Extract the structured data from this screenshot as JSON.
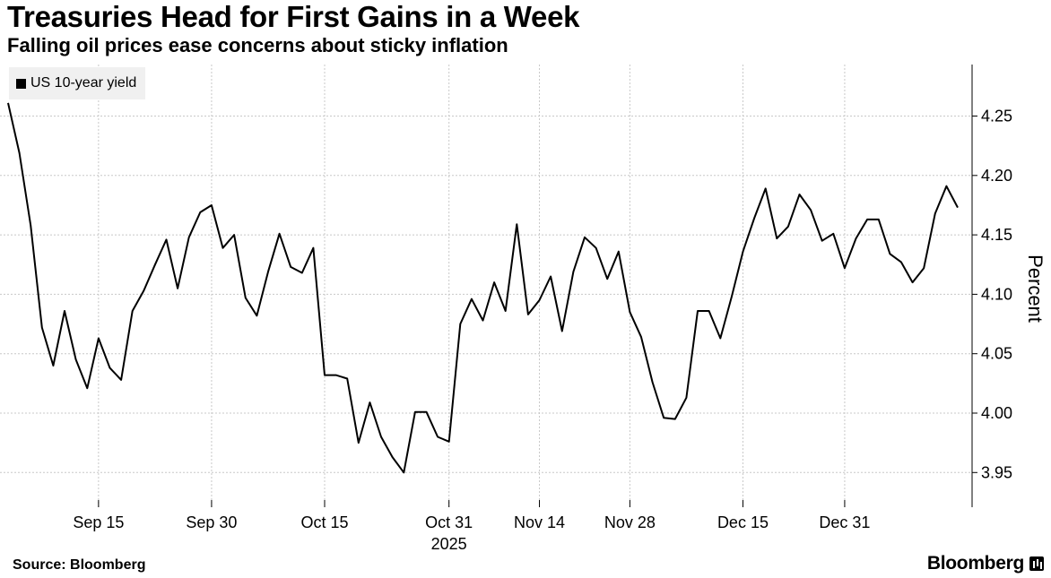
{
  "chart_data": {
    "type": "line",
    "title": "Treasuries Head for First Gains in a Week",
    "subtitle": "Falling oil prices ease concerns about sticky inflation",
    "legend": "US 10-year yield",
    "ylabel": "Percent",
    "xlabel": "",
    "ylim": [
      3.93,
      4.28
    ],
    "yticks": [
      "4.25",
      "4.20",
      "4.15",
      "4.10",
      "4.05",
      "4.00",
      "3.95"
    ],
    "xticks": [
      {
        "index": 8,
        "label": "Sep 15"
      },
      {
        "index": 18,
        "label": "Sep 30"
      },
      {
        "index": 28,
        "label": "Oct 15"
      },
      {
        "index": 39,
        "label": "Oct 31"
      },
      {
        "index": 47,
        "label": "Nov 14"
      },
      {
        "index": 55,
        "label": "Nov 28"
      },
      {
        "index": 65,
        "label": "Dec 15"
      },
      {
        "index": 74,
        "label": "Dec 31"
      }
    ],
    "year_label": "2025",
    "series": [
      {
        "name": "US 10-year yield",
        "values": [
          4.261,
          4.219,
          4.158,
          4.072,
          4.04,
          4.086,
          4.045,
          4.021,
          4.063,
          4.038,
          4.028,
          4.086,
          4.103,
          4.125,
          4.146,
          4.105,
          4.148,
          4.169,
          4.175,
          4.139,
          4.15,
          4.097,
          4.082,
          4.119,
          4.151,
          4.123,
          4.118,
          4.139,
          4.032,
          4.032,
          4.029,
          3.975,
          4.009,
          3.98,
          3.963,
          3.95,
          4.001,
          4.001,
          3.98,
          3.976,
          4.075,
          4.096,
          4.078,
          4.11,
          4.086,
          4.159,
          4.083,
          4.095,
          4.115,
          4.069,
          4.119,
          4.148,
          4.139,
          4.113,
          4.136,
          4.085,
          4.064,
          4.026,
          3.996,
          3.995,
          4.013,
          4.086,
          4.086,
          4.063,
          4.098,
          4.136,
          4.164,
          4.189,
          4.147,
          4.157,
          4.184,
          4.171,
          4.145,
          4.151,
          4.122,
          4.147,
          4.163,
          4.163,
          4.134,
          4.127,
          4.11,
          4.122,
          4.168,
          4.191,
          4.173
        ]
      }
    ]
  },
  "footer": {
    "source": "Source: Bloomberg",
    "brand": "Bloomberg"
  }
}
